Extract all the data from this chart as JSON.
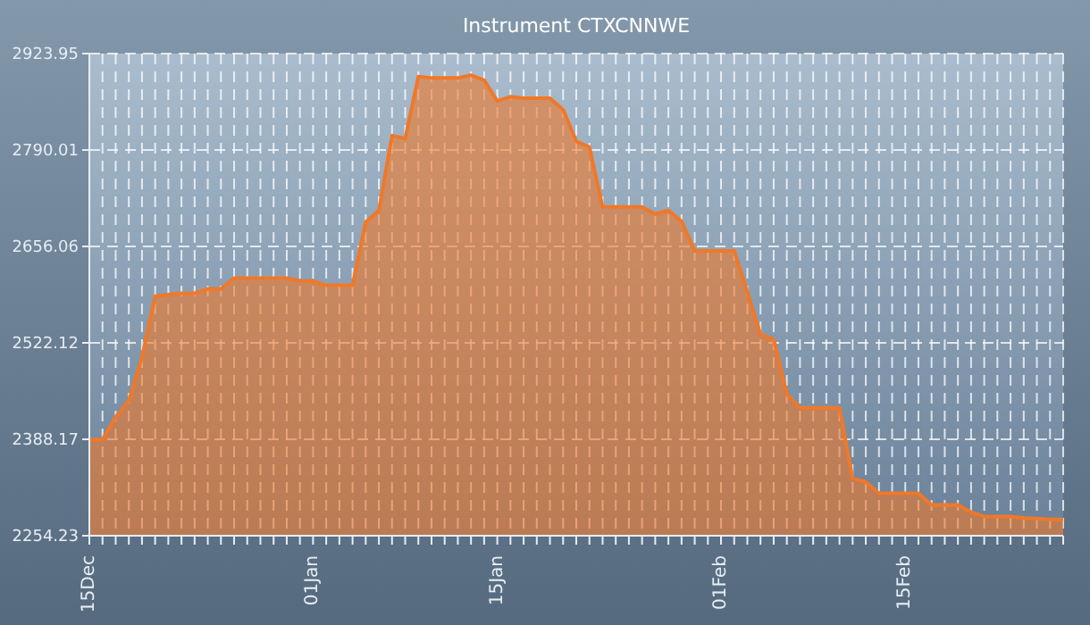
{
  "chart_data": {
    "type": "area",
    "title": "Instrument CTXCNNWE",
    "categories": [
      "15Dec",
      null,
      null,
      null,
      null,
      null,
      null,
      null,
      null,
      null,
      null,
      null,
      null,
      null,
      null,
      null,
      null,
      "01Jan",
      null,
      null,
      null,
      null,
      null,
      null,
      null,
      null,
      null,
      null,
      null,
      null,
      null,
      "15Jan",
      null,
      null,
      null,
      null,
      null,
      null,
      null,
      null,
      null,
      null,
      null,
      null,
      null,
      null,
      null,
      null,
      "01Feb",
      null,
      null,
      null,
      null,
      null,
      null,
      null,
      null,
      null,
      null,
      null,
      null,
      null,
      "15Feb",
      null,
      null,
      null,
      null,
      null,
      null,
      null,
      null,
      null,
      null,
      null,
      null
    ],
    "series": [
      {
        "color": "#f07828",
        "values": [
          2388,
          2388,
          2419,
          2442,
          2502,
          2587,
          2589,
          2591,
          2591,
          2597,
          2597,
          2612,
          2612,
          2612,
          2612,
          2612,
          2608,
          2608,
          2602,
          2602,
          2602,
          2690,
          2706,
          2810,
          2806,
          2892,
          2890,
          2890,
          2890,
          2894,
          2887,
          2858,
          2864,
          2862,
          2862,
          2862,
          2846,
          2802,
          2794,
          2711,
          2711,
          2711,
          2711,
          2701,
          2706,
          2691,
          2650,
          2650,
          2650,
          2650,
          2593,
          2534,
          2527,
          2451,
          2432,
          2432,
          2432,
          2432,
          2334,
          2329,
          2313,
          2313,
          2313,
          2313,
          2297,
          2297,
          2297,
          2287,
          2281,
          2281,
          2281,
          2279,
          2278,
          2277,
          2277
        ]
      }
    ],
    "ylim": [
      2254.23,
      2923.95
    ],
    "yticks": [
      2254.23,
      2388.17,
      2522.12,
      2656.06,
      2790.01,
      2923.95
    ],
    "grid": true,
    "legend": false,
    "marker": "none",
    "line_style": "solid"
  }
}
